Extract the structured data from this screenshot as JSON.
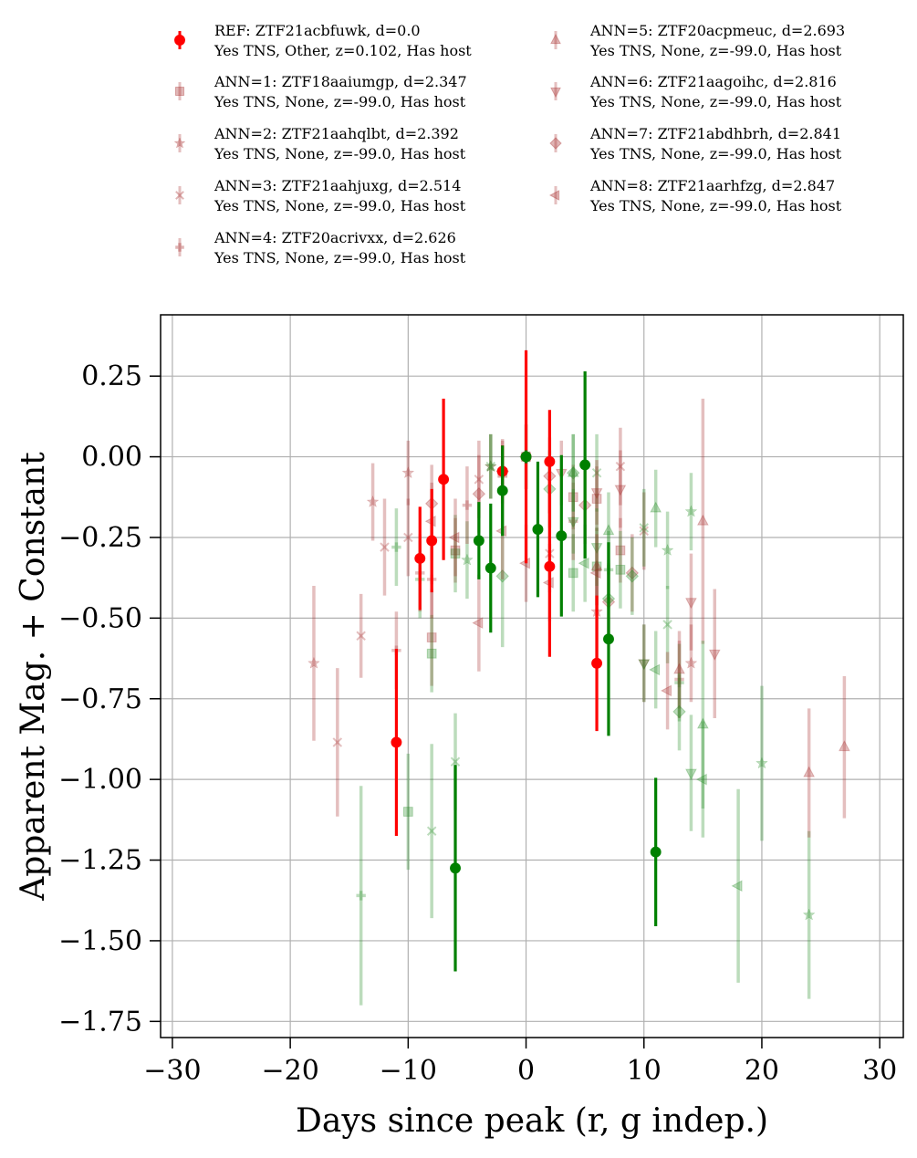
{
  "chart_data": {
    "type": "scatter",
    "xlabel": "Days since peak (r, g indep.)",
    "ylabel": "Apparent Mag. + Constant",
    "xlim": [
      -31,
      32
    ],
    "ylim": [
      -1.8,
      0.44
    ],
    "y_inverted": false,
    "grid": true,
    "x_ticks": [
      -30,
      -20,
      -10,
      0,
      10,
      20,
      30
    ],
    "x_tick_labels": [
      "−30",
      "−20",
      "−10",
      "0",
      "10",
      "20",
      "30"
    ],
    "y_ticks": [
      0.25,
      0.0,
      -0.25,
      -0.5,
      -0.75,
      -1.0,
      -1.25,
      -1.5,
      -1.75
    ],
    "y_tick_labels": [
      "0.25",
      "0.00",
      "−0.25",
      "−0.50",
      "−0.75",
      "−1.00",
      "−1.25",
      "−1.50",
      "−1.75"
    ],
    "legend_position": "top, above plot, two columns",
    "band_colors": {
      "r": "#ff0000",
      "g": "#008000",
      "r_faded": "#a52a2a",
      "g_faded": "#228b22"
    },
    "series": [
      {
        "name": "REF: ZTF21acbfuwk, d=0.0",
        "name2": "Yes TNS, Other, z=0.102, Has host",
        "marker": "circle",
        "alpha": 1.0,
        "r": [
          [
            -11,
            -0.885,
            0.29
          ],
          [
            -9,
            -0.315,
            0.16
          ],
          [
            -8,
            -0.26,
            0.16
          ],
          [
            -7,
            -0.07,
            0.25
          ],
          [
            -2,
            -0.045,
            0.08
          ],
          [
            0,
            0.0,
            0.33
          ],
          [
            2,
            -0.015,
            0.16
          ],
          [
            2,
            -0.34,
            0.28
          ],
          [
            6,
            -0.64,
            0.21
          ]
        ],
        "g": [
          [
            -6,
            -1.275,
            0.32
          ],
          [
            -4,
            -0.26,
            0.12
          ],
          [
            -3,
            -0.345,
            0.2
          ],
          [
            -2,
            -0.105,
            0.14
          ],
          [
            0,
            0.0,
            0.02
          ],
          [
            1,
            -0.225,
            0.21
          ],
          [
            3,
            -0.245,
            0.25
          ],
          [
            5,
            -0.025,
            0.29
          ],
          [
            7,
            -0.565,
            0.3
          ],
          [
            11,
            -1.225,
            0.23
          ]
        ]
      },
      {
        "name": "ANN=1: ZTF18aaiumgp, d=2.347",
        "name2": "Yes TNS, None, z=-99.0, Has host",
        "marker": "square",
        "alpha": 0.3,
        "r": [
          [
            -8,
            -0.56,
            0.15
          ],
          [
            -6,
            -0.29,
            0.1
          ],
          [
            -2,
            -0.05,
            0.1
          ],
          [
            0,
            0.0,
            0.1
          ],
          [
            4,
            -0.125,
            0.1
          ],
          [
            6,
            -0.13,
            0.1
          ],
          [
            8,
            -0.29,
            0.1
          ]
        ],
        "g": [
          [
            -10,
            -1.1,
            0.18
          ],
          [
            -8,
            -0.61,
            0.12
          ],
          [
            -6,
            -0.3,
            0.12
          ],
          [
            4,
            -0.36,
            0.12
          ],
          [
            6,
            -0.34,
            0.12
          ],
          [
            8,
            -0.35,
            0.12
          ]
        ]
      },
      {
        "name": "ANN=2: ZTF21aahqlbt, d=2.392",
        "name2": "Yes TNS, None, z=-99.0, Has host",
        "marker": "star",
        "alpha": 0.3,
        "r": [
          [
            -18,
            -0.64,
            0.24
          ],
          [
            -13,
            -0.14,
            0.12
          ],
          [
            -10,
            -0.05,
            0.1
          ],
          [
            -3,
            -0.03,
            0.1
          ],
          [
            6,
            -0.48,
            0.15
          ],
          [
            14,
            -0.64,
            0.12
          ]
        ],
        "g": [
          [
            -5,
            -0.32,
            0.12
          ],
          [
            -3,
            -0.03,
            0.1
          ],
          [
            12,
            -0.29,
            0.12
          ],
          [
            14,
            -0.17,
            0.12
          ],
          [
            20,
            -0.95,
            0.24
          ],
          [
            24,
            -1.42,
            0.26
          ]
        ]
      },
      {
        "name": "ANN=3: ZTF21aahjuxg, d=2.514",
        "name2": "Yes TNS, None, z=-99.0, Has host",
        "marker": "x",
        "alpha": 0.3,
        "r": [
          [
            -16,
            -0.885,
            0.23
          ],
          [
            -14,
            -0.555,
            0.13
          ],
          [
            -12,
            -0.28,
            0.15
          ],
          [
            -10,
            -0.25,
            0.12
          ],
          [
            -4,
            -0.07,
            0.12
          ],
          [
            2,
            -0.3,
            0.12
          ],
          [
            8,
            -0.03,
            0.12
          ],
          [
            10,
            -0.23,
            0.12
          ]
        ],
        "g": [
          [
            -8,
            -1.16,
            0.27
          ],
          [
            -6,
            -0.945,
            0.15
          ],
          [
            -3,
            -0.03,
            0.1
          ],
          [
            6,
            -0.05,
            0.12
          ],
          [
            10,
            -0.22,
            0.12
          ],
          [
            12,
            -0.52,
            0.12
          ]
        ]
      },
      {
        "name": "ANN=4: ZTF20acrivxx, d=2.626",
        "name2": "Yes TNS, None, z=-99.0, Has host",
        "marker": "plus",
        "alpha": 0.3,
        "r": [
          [
            -11,
            -0.6,
            0.12
          ],
          [
            -9,
            -0.36,
            0.12
          ],
          [
            -8,
            -0.38,
            0.12
          ],
          [
            -5,
            -0.15,
            0.12
          ],
          [
            4,
            -0.2,
            0.12
          ],
          [
            13,
            -0.69,
            0.12
          ]
        ],
        "g": [
          [
            -14,
            -1.36,
            0.34
          ],
          [
            -11,
            -0.28,
            0.12
          ],
          [
            -9,
            -0.38,
            0.12
          ],
          [
            7,
            -0.35,
            0.12
          ],
          [
            13,
            -0.7,
            0.12
          ]
        ]
      },
      {
        "name": "ANN=5: ZTF20acpmeuc, d=2.693",
        "name2": "Yes TNS, None, z=-99.0, Has host",
        "marker": "triangle-up",
        "alpha": 0.3,
        "r": [
          [
            6,
            -0.34,
            0.12
          ],
          [
            13,
            -0.66,
            0.12
          ],
          [
            15,
            -0.2,
            0.38
          ],
          [
            24,
            -0.98,
            0.2
          ],
          [
            27,
            -0.9,
            0.22
          ]
        ],
        "g": [
          [
            4,
            -0.05,
            0.12
          ],
          [
            7,
            -0.23,
            0.12
          ],
          [
            11,
            -0.16,
            0.12
          ],
          [
            15,
            -0.83,
            0.26
          ]
        ]
      },
      {
        "name": "ANN=6: ZTF21aagoihc, d=2.816",
        "name2": "Yes TNS, None, z=-99.0, Has host",
        "marker": "triangle-down",
        "alpha": 0.3,
        "r": [
          [
            3,
            -0.05,
            0.1
          ],
          [
            6,
            -0.11,
            0.1
          ],
          [
            8,
            -0.1,
            0.12
          ],
          [
            10,
            -0.64,
            0.12
          ],
          [
            14,
            -0.45,
            0.15
          ],
          [
            16,
            -0.61,
            0.2
          ]
        ],
        "g": [
          [
            4,
            -0.2,
            0.1
          ],
          [
            6,
            -0.28,
            0.12
          ],
          [
            10,
            -0.64,
            0.12
          ],
          [
            14,
            -0.98,
            0.18
          ]
        ]
      },
      {
        "name": "ANN=7: ZTF21abdhbrh, d=2.841",
        "name2": "Yes TNS, None, z=-99.0, Has host",
        "marker": "diamond",
        "alpha": 0.3,
        "r": [
          [
            -8,
            -0.145,
            0.12
          ],
          [
            -4,
            -0.115,
            0.12
          ],
          [
            -2,
            -0.045,
            0.1
          ],
          [
            2,
            -0.06,
            0.12
          ],
          [
            5,
            -0.15,
            0.12
          ],
          [
            7,
            -0.45,
            0.12
          ],
          [
            9,
            -0.36,
            0.12
          ]
        ],
        "g": [
          [
            -2,
            -0.37,
            0.22
          ],
          [
            2,
            -0.1,
            0.12
          ],
          [
            4,
            -0.05,
            0.12
          ],
          [
            7,
            -0.44,
            0.12
          ],
          [
            9,
            -0.37,
            0.12
          ],
          [
            13,
            -0.79,
            0.12
          ]
        ]
      },
      {
        "name": "ANN=8: ZTF21aarhfzg, d=2.847",
        "name2": "Yes TNS, None, z=-99.0, Has host",
        "marker": "triangle-left",
        "alpha": 0.3,
        "r": [
          [
            -8,
            -0.2,
            0.12
          ],
          [
            -6,
            -0.25,
            0.12
          ],
          [
            -4,
            -0.515,
            0.15
          ],
          [
            -2,
            -0.23,
            0.15
          ],
          [
            0,
            -0.33,
            0.12
          ],
          [
            2,
            -0.39,
            0.12
          ],
          [
            6,
            -0.36,
            0.12
          ],
          [
            12,
            -0.725,
            0.12
          ]
        ],
        "g": [
          [
            0,
            0.0,
            0.1
          ],
          [
            5,
            -0.33,
            0.12
          ],
          [
            11,
            -0.66,
            0.12
          ],
          [
            15,
            -1.0,
            0.18
          ],
          [
            18,
            -1.33,
            0.3
          ]
        ]
      }
    ]
  }
}
